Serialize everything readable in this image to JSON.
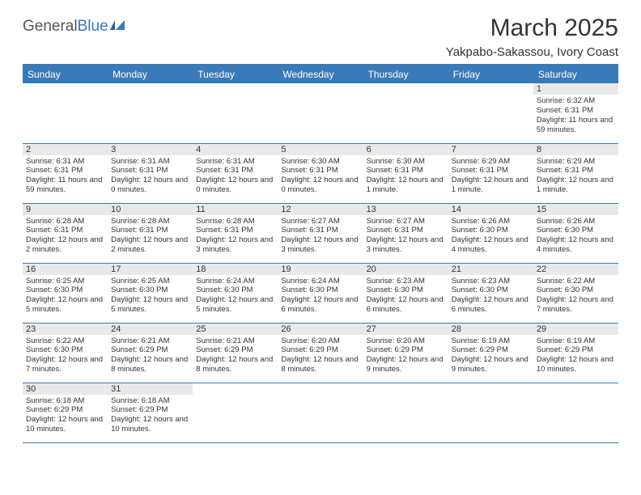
{
  "logo": {
    "part1": "General",
    "part2": "Blue"
  },
  "title": "March 2025",
  "location": "Yakpabo-Sakassou, Ivory Coast",
  "colors": {
    "accent": "#3a7ab8",
    "header_text": "#ffffff",
    "daynum_bg": "#e9e9e9",
    "text": "#333333",
    "background": "#ffffff"
  },
  "day_headers": [
    "Sunday",
    "Monday",
    "Tuesday",
    "Wednesday",
    "Thursday",
    "Friday",
    "Saturday"
  ],
  "weeks": [
    [
      null,
      null,
      null,
      null,
      null,
      null,
      {
        "n": "1",
        "sunrise": "Sunrise: 6:32 AM",
        "sunset": "Sunset: 6:31 PM",
        "daylight": "Daylight: 11 hours and 59 minutes."
      }
    ],
    [
      {
        "n": "2",
        "sunrise": "Sunrise: 6:31 AM",
        "sunset": "Sunset: 6:31 PM",
        "daylight": "Daylight: 11 hours and 59 minutes."
      },
      {
        "n": "3",
        "sunrise": "Sunrise: 6:31 AM",
        "sunset": "Sunset: 6:31 PM",
        "daylight": "Daylight: 12 hours and 0 minutes."
      },
      {
        "n": "4",
        "sunrise": "Sunrise: 6:31 AM",
        "sunset": "Sunset: 6:31 PM",
        "daylight": "Daylight: 12 hours and 0 minutes."
      },
      {
        "n": "5",
        "sunrise": "Sunrise: 6:30 AM",
        "sunset": "Sunset: 6:31 PM",
        "daylight": "Daylight: 12 hours and 0 minutes."
      },
      {
        "n": "6",
        "sunrise": "Sunrise: 6:30 AM",
        "sunset": "Sunset: 6:31 PM",
        "daylight": "Daylight: 12 hours and 1 minute."
      },
      {
        "n": "7",
        "sunrise": "Sunrise: 6:29 AM",
        "sunset": "Sunset: 6:31 PM",
        "daylight": "Daylight: 12 hours and 1 minute."
      },
      {
        "n": "8",
        "sunrise": "Sunrise: 6:29 AM",
        "sunset": "Sunset: 6:31 PM",
        "daylight": "Daylight: 12 hours and 1 minute."
      }
    ],
    [
      {
        "n": "9",
        "sunrise": "Sunrise: 6:28 AM",
        "sunset": "Sunset: 6:31 PM",
        "daylight": "Daylight: 12 hours and 2 minutes."
      },
      {
        "n": "10",
        "sunrise": "Sunrise: 6:28 AM",
        "sunset": "Sunset: 6:31 PM",
        "daylight": "Daylight: 12 hours and 2 minutes."
      },
      {
        "n": "11",
        "sunrise": "Sunrise: 6:28 AM",
        "sunset": "Sunset: 6:31 PM",
        "daylight": "Daylight: 12 hours and 3 minutes."
      },
      {
        "n": "12",
        "sunrise": "Sunrise: 6:27 AM",
        "sunset": "Sunset: 6:31 PM",
        "daylight": "Daylight: 12 hours and 3 minutes."
      },
      {
        "n": "13",
        "sunrise": "Sunrise: 6:27 AM",
        "sunset": "Sunset: 6:31 PM",
        "daylight": "Daylight: 12 hours and 3 minutes."
      },
      {
        "n": "14",
        "sunrise": "Sunrise: 6:26 AM",
        "sunset": "Sunset: 6:30 PM",
        "daylight": "Daylight: 12 hours and 4 minutes."
      },
      {
        "n": "15",
        "sunrise": "Sunrise: 6:26 AM",
        "sunset": "Sunset: 6:30 PM",
        "daylight": "Daylight: 12 hours and 4 minutes."
      }
    ],
    [
      {
        "n": "16",
        "sunrise": "Sunrise: 6:25 AM",
        "sunset": "Sunset: 6:30 PM",
        "daylight": "Daylight: 12 hours and 5 minutes."
      },
      {
        "n": "17",
        "sunrise": "Sunrise: 6:25 AM",
        "sunset": "Sunset: 6:30 PM",
        "daylight": "Daylight: 12 hours and 5 minutes."
      },
      {
        "n": "18",
        "sunrise": "Sunrise: 6:24 AM",
        "sunset": "Sunset: 6:30 PM",
        "daylight": "Daylight: 12 hours and 5 minutes."
      },
      {
        "n": "19",
        "sunrise": "Sunrise: 6:24 AM",
        "sunset": "Sunset: 6:30 PM",
        "daylight": "Daylight: 12 hours and 6 minutes."
      },
      {
        "n": "20",
        "sunrise": "Sunrise: 6:23 AM",
        "sunset": "Sunset: 6:30 PM",
        "daylight": "Daylight: 12 hours and 6 minutes."
      },
      {
        "n": "21",
        "sunrise": "Sunrise: 6:23 AM",
        "sunset": "Sunset: 6:30 PM",
        "daylight": "Daylight: 12 hours and 6 minutes."
      },
      {
        "n": "22",
        "sunrise": "Sunrise: 6:22 AM",
        "sunset": "Sunset: 6:30 PM",
        "daylight": "Daylight: 12 hours and 7 minutes."
      }
    ],
    [
      {
        "n": "23",
        "sunrise": "Sunrise: 6:22 AM",
        "sunset": "Sunset: 6:30 PM",
        "daylight": "Daylight: 12 hours and 7 minutes."
      },
      {
        "n": "24",
        "sunrise": "Sunrise: 6:21 AM",
        "sunset": "Sunset: 6:29 PM",
        "daylight": "Daylight: 12 hours and 8 minutes."
      },
      {
        "n": "25",
        "sunrise": "Sunrise: 6:21 AM",
        "sunset": "Sunset: 6:29 PM",
        "daylight": "Daylight: 12 hours and 8 minutes."
      },
      {
        "n": "26",
        "sunrise": "Sunrise: 6:20 AM",
        "sunset": "Sunset: 6:29 PM",
        "daylight": "Daylight: 12 hours and 8 minutes."
      },
      {
        "n": "27",
        "sunrise": "Sunrise: 6:20 AM",
        "sunset": "Sunset: 6:29 PM",
        "daylight": "Daylight: 12 hours and 9 minutes."
      },
      {
        "n": "28",
        "sunrise": "Sunrise: 6:19 AM",
        "sunset": "Sunset: 6:29 PM",
        "daylight": "Daylight: 12 hours and 9 minutes."
      },
      {
        "n": "29",
        "sunrise": "Sunrise: 6:19 AM",
        "sunset": "Sunset: 6:29 PM",
        "daylight": "Daylight: 12 hours and 10 minutes."
      }
    ],
    [
      {
        "n": "30",
        "sunrise": "Sunrise: 6:18 AM",
        "sunset": "Sunset: 6:29 PM",
        "daylight": "Daylight: 12 hours and 10 minutes."
      },
      {
        "n": "31",
        "sunrise": "Sunrise: 6:18 AM",
        "sunset": "Sunset: 6:29 PM",
        "daylight": "Daylight: 12 hours and 10 minutes."
      },
      null,
      null,
      null,
      null,
      null
    ]
  ]
}
